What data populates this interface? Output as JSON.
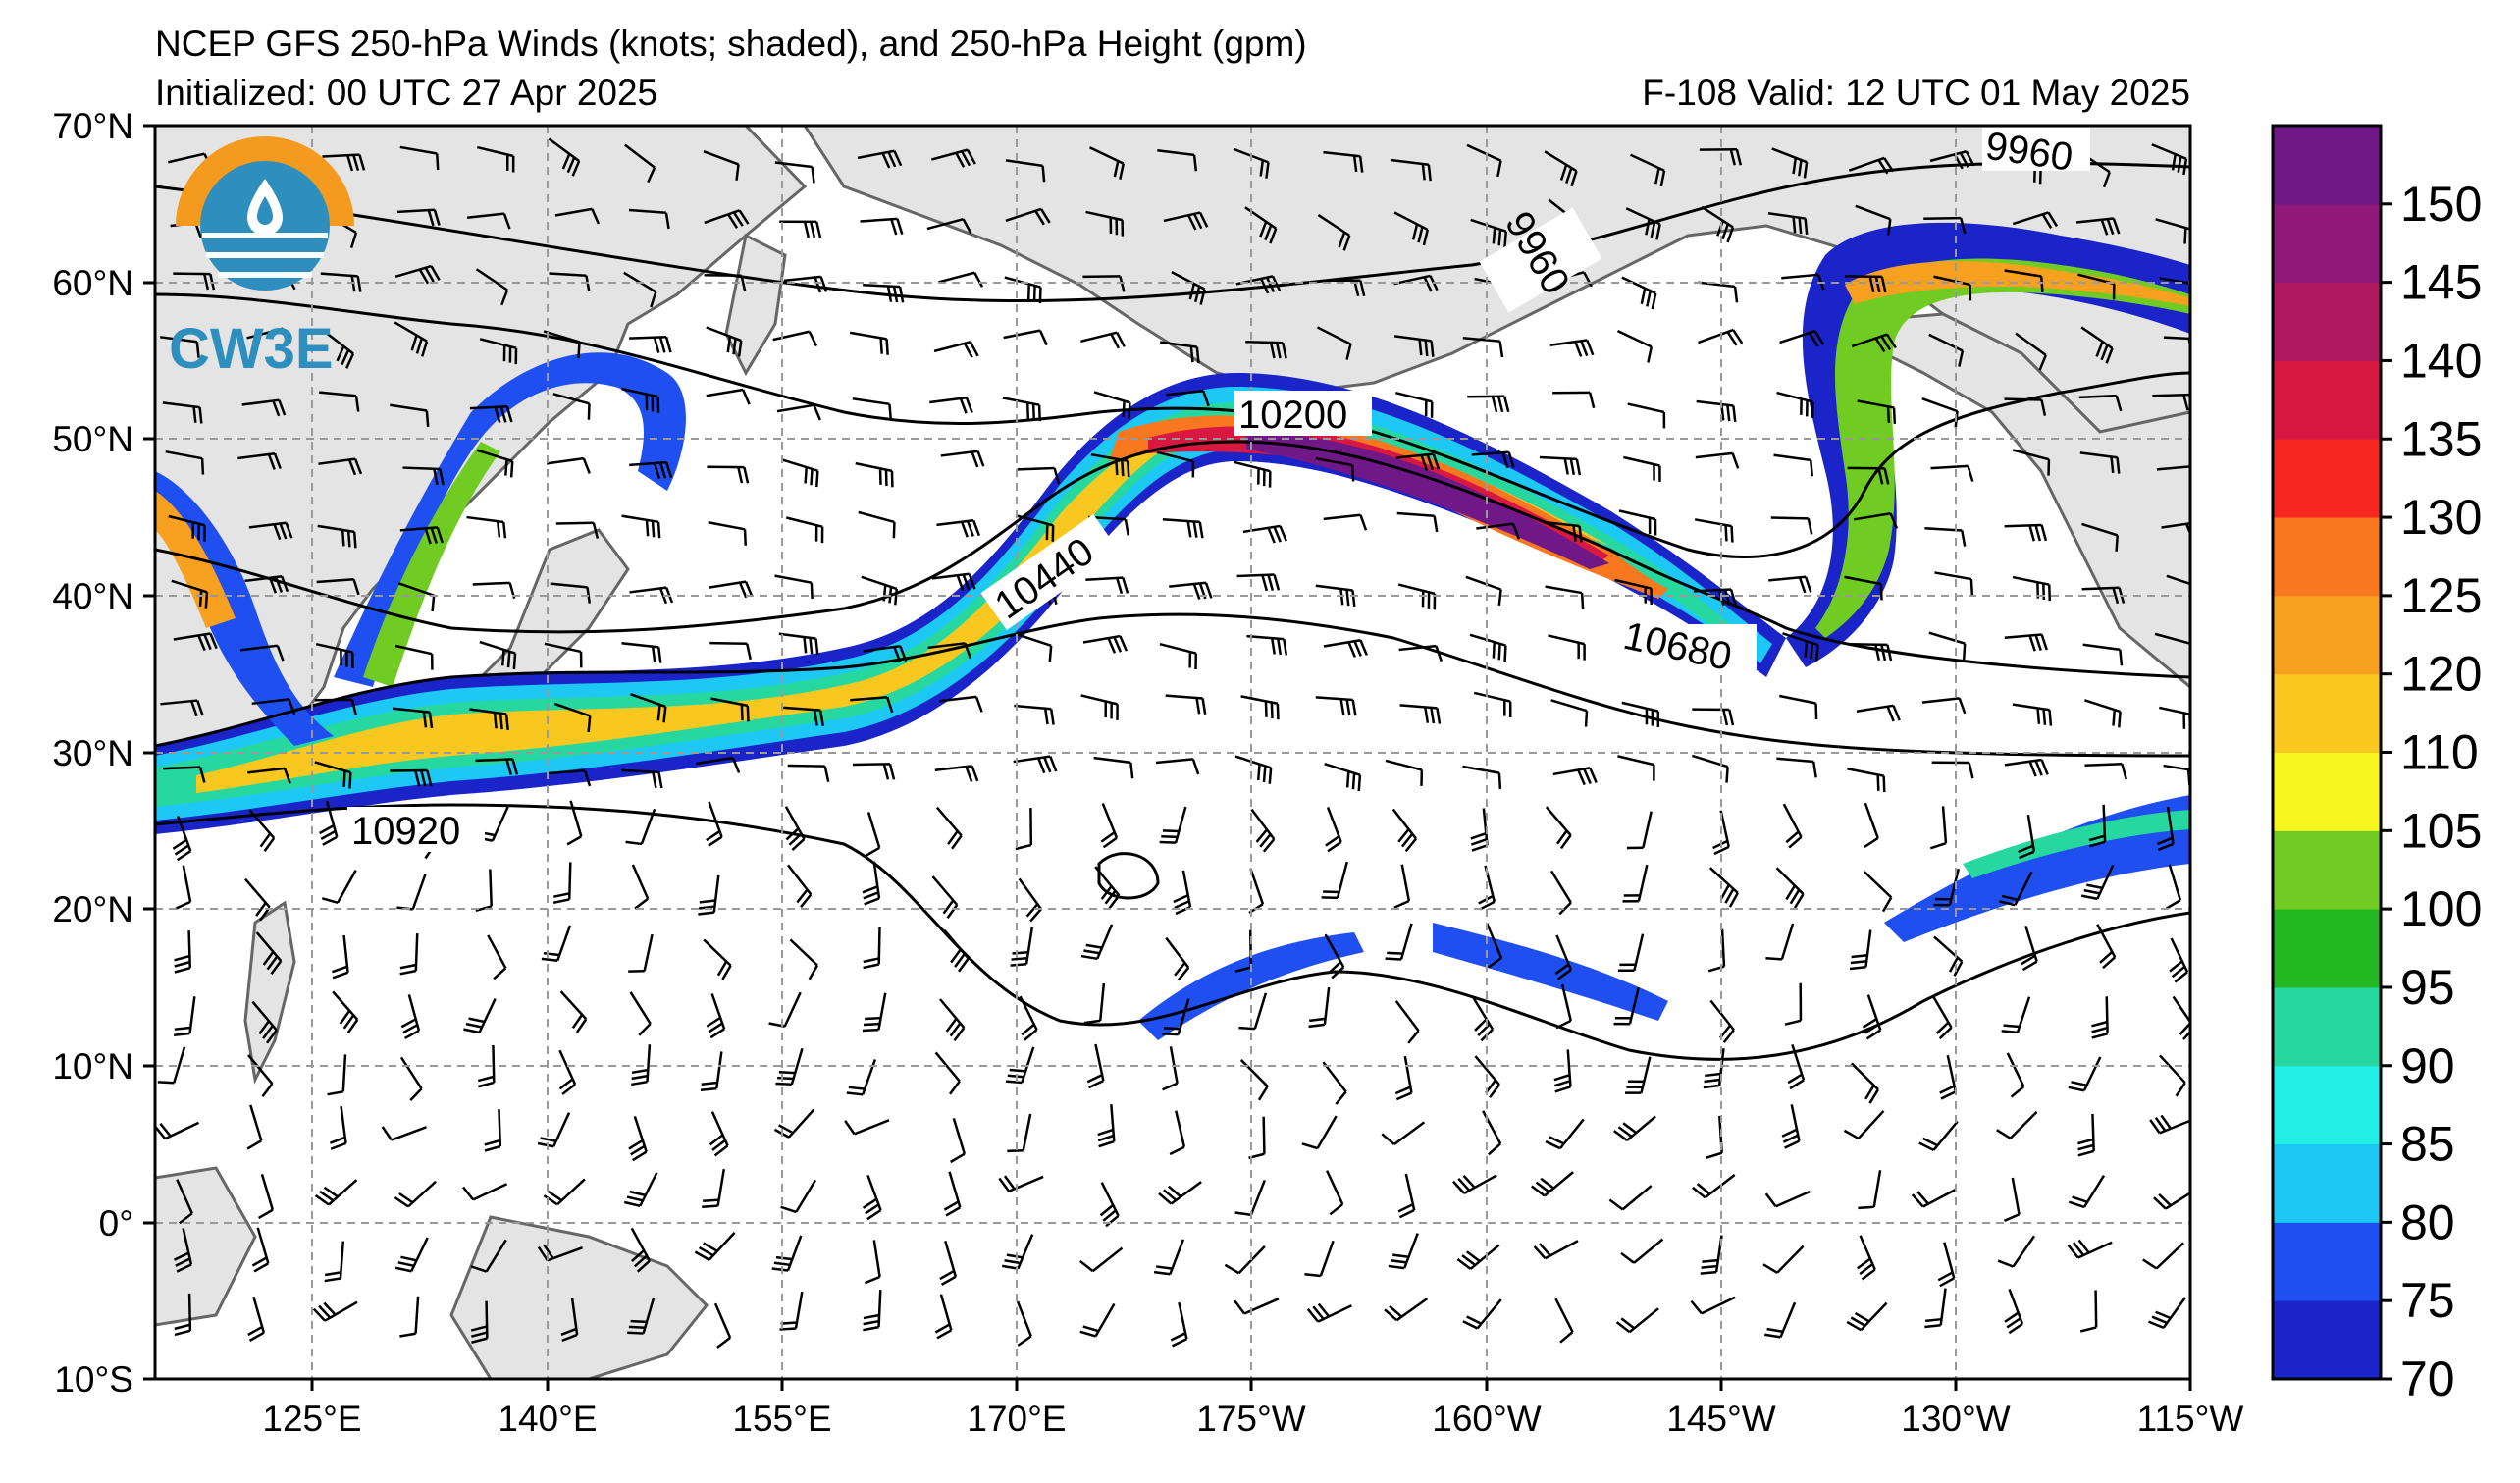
{
  "title_line_1": "NCEP GFS 250-hPa Winds (knots; shaded), and 250-hPa Height (gpm)",
  "title_line_2": "Initialized: 00 UTC 27 Apr 2025",
  "valid_text": "F-108  Valid: 12 UTC 01 May 2025",
  "logo_text": "CW3E",
  "lat_labels": [
    "70°N",
    "60°N",
    "50°N",
    "40°N",
    "30°N",
    "20°N",
    "10°N",
    "0°",
    "10°S"
  ],
  "lon_labels": [
    "125°E",
    "140°E",
    "155°E",
    "170°E",
    "175°W",
    "160°W",
    "145°W",
    "130°W",
    "115°W"
  ],
  "colorbar": {
    "labels": [
      "70",
      "75",
      "80",
      "85",
      "90",
      "95",
      "100",
      "105",
      "110",
      "120",
      "125",
      "130",
      "135",
      "140",
      "145",
      "150"
    ],
    "colors": [
      "#1a24c8",
      "#1f4ff0",
      "#1ec8f5",
      "#22f0e6",
      "#26d8a0",
      "#22b822",
      "#70cc22",
      "#f8f820",
      "#f8c820",
      "#f8a020",
      "#f87820",
      "#f82820",
      "#d81840",
      "#b01860",
      "#901878",
      "#701888"
    ]
  },
  "contour_labels": [
    "9960",
    "9960",
    "10200",
    "10440",
    "10680",
    "10920"
  ],
  "map_colors": {
    "land": "#e4e4e4",
    "coast": "#666666",
    "grid": "#999999",
    "contour": "#000000"
  }
}
